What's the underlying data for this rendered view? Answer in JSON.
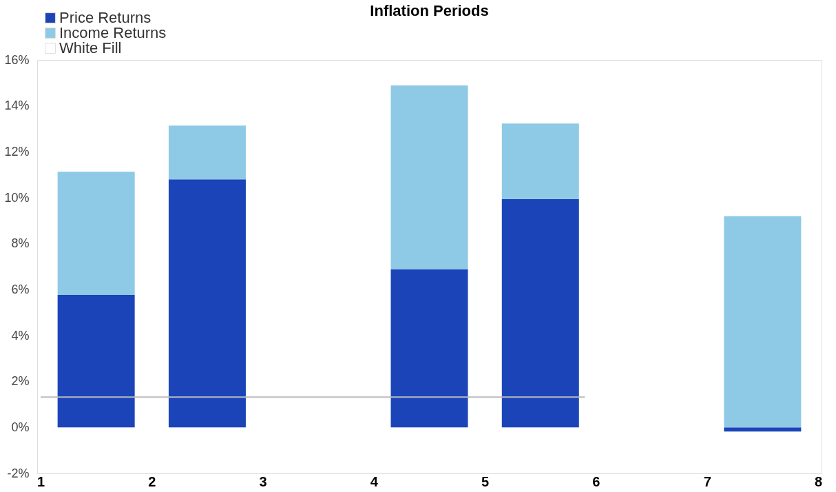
{
  "chart_data": {
    "type": "bar",
    "title": "Inflation Periods",
    "stacked": true,
    "x": [
      1.5,
      2.5,
      4.5,
      5.5,
      7.5
    ],
    "series": [
      {
        "name": "Price Returns",
        "color": "#1b44b8",
        "values": [
          5.77,
          10.8,
          6.89,
          9.95,
          -0.18
        ]
      },
      {
        "name": "Income Returns",
        "color": "#8ecae6",
        "values": [
          5.36,
          2.34,
          8.0,
          3.28,
          9.2
        ]
      },
      {
        "name": "White Fill",
        "color": "#ffffff",
        "values": [
          null,
          null,
          null,
          null,
          null
        ]
      },
      {
        "type": "line",
        "color": "#bbbbbb",
        "x": [
          1,
          5.9
        ],
        "values": [
          1.32,
          1.32
        ]
      }
    ],
    "xlim": [
      1,
      8
    ],
    "xticks": [
      1,
      2,
      3,
      4,
      5,
      6,
      7,
      8
    ],
    "ylim": [
      -2,
      16
    ],
    "yticks": [
      {
        "value": -2,
        "label": "-2%"
      },
      {
        "value": 0,
        "label": "0%"
      },
      {
        "value": 2,
        "label": "2%"
      },
      {
        "value": 4,
        "label": "4%"
      },
      {
        "value": 6,
        "label": "6%"
      },
      {
        "value": 8,
        "label": "8%"
      },
      {
        "value": 10,
        "label": "10%"
      },
      {
        "value": 12,
        "label": "12%"
      },
      {
        "value": 14,
        "label": "14%"
      },
      {
        "value": 16,
        "label": "16%"
      }
    ],
    "grid": false,
    "legend": "top left"
  }
}
